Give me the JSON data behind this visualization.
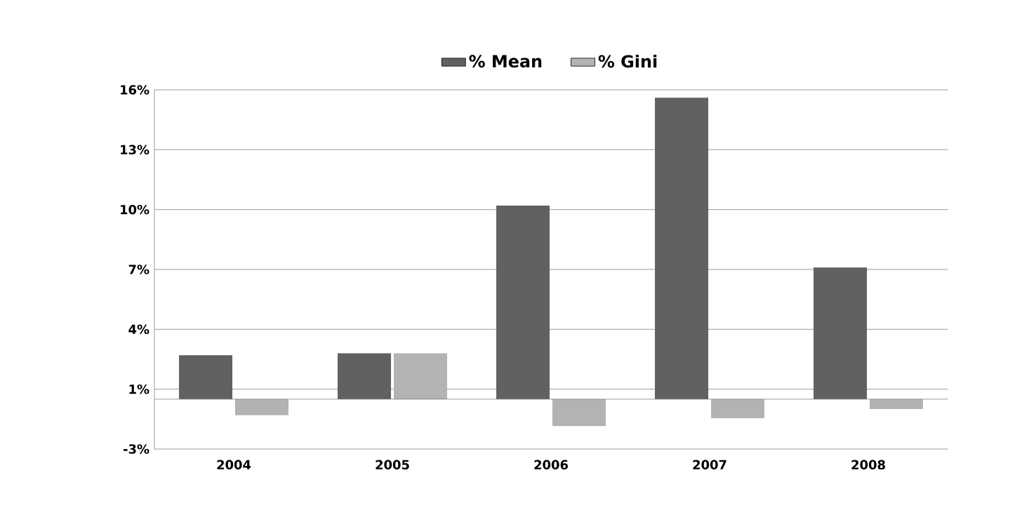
{
  "chart_data": {
    "type": "bar",
    "categories": [
      "2004",
      "2005",
      "2006",
      "2007",
      "2008"
    ],
    "series": [
      {
        "name": "% Mean",
        "color": "#616161",
        "values": [
          2.2,
          2.3,
          9.7,
          15.1,
          6.6
        ]
      },
      {
        "name": "% Gini",
        "color": "#b3b3b3",
        "values": [
          -0.8,
          2.3,
          -1.35,
          -0.95,
          -0.5
        ]
      }
    ],
    "ylim": [
      -2.5,
      15.5
    ],
    "yticks": [
      {
        "value": -2.5,
        "label": "-3%"
      },
      {
        "value": 0.5,
        "label": "1%"
      },
      {
        "value": 3.5,
        "label": "4%"
      },
      {
        "value": 6.5,
        "label": "7%"
      },
      {
        "value": 9.5,
        "label": "10%"
      },
      {
        "value": 12.5,
        "label": "13%"
      },
      {
        "value": 15.5,
        "label": "16%"
      }
    ],
    "grid": "y",
    "legend": "top"
  }
}
